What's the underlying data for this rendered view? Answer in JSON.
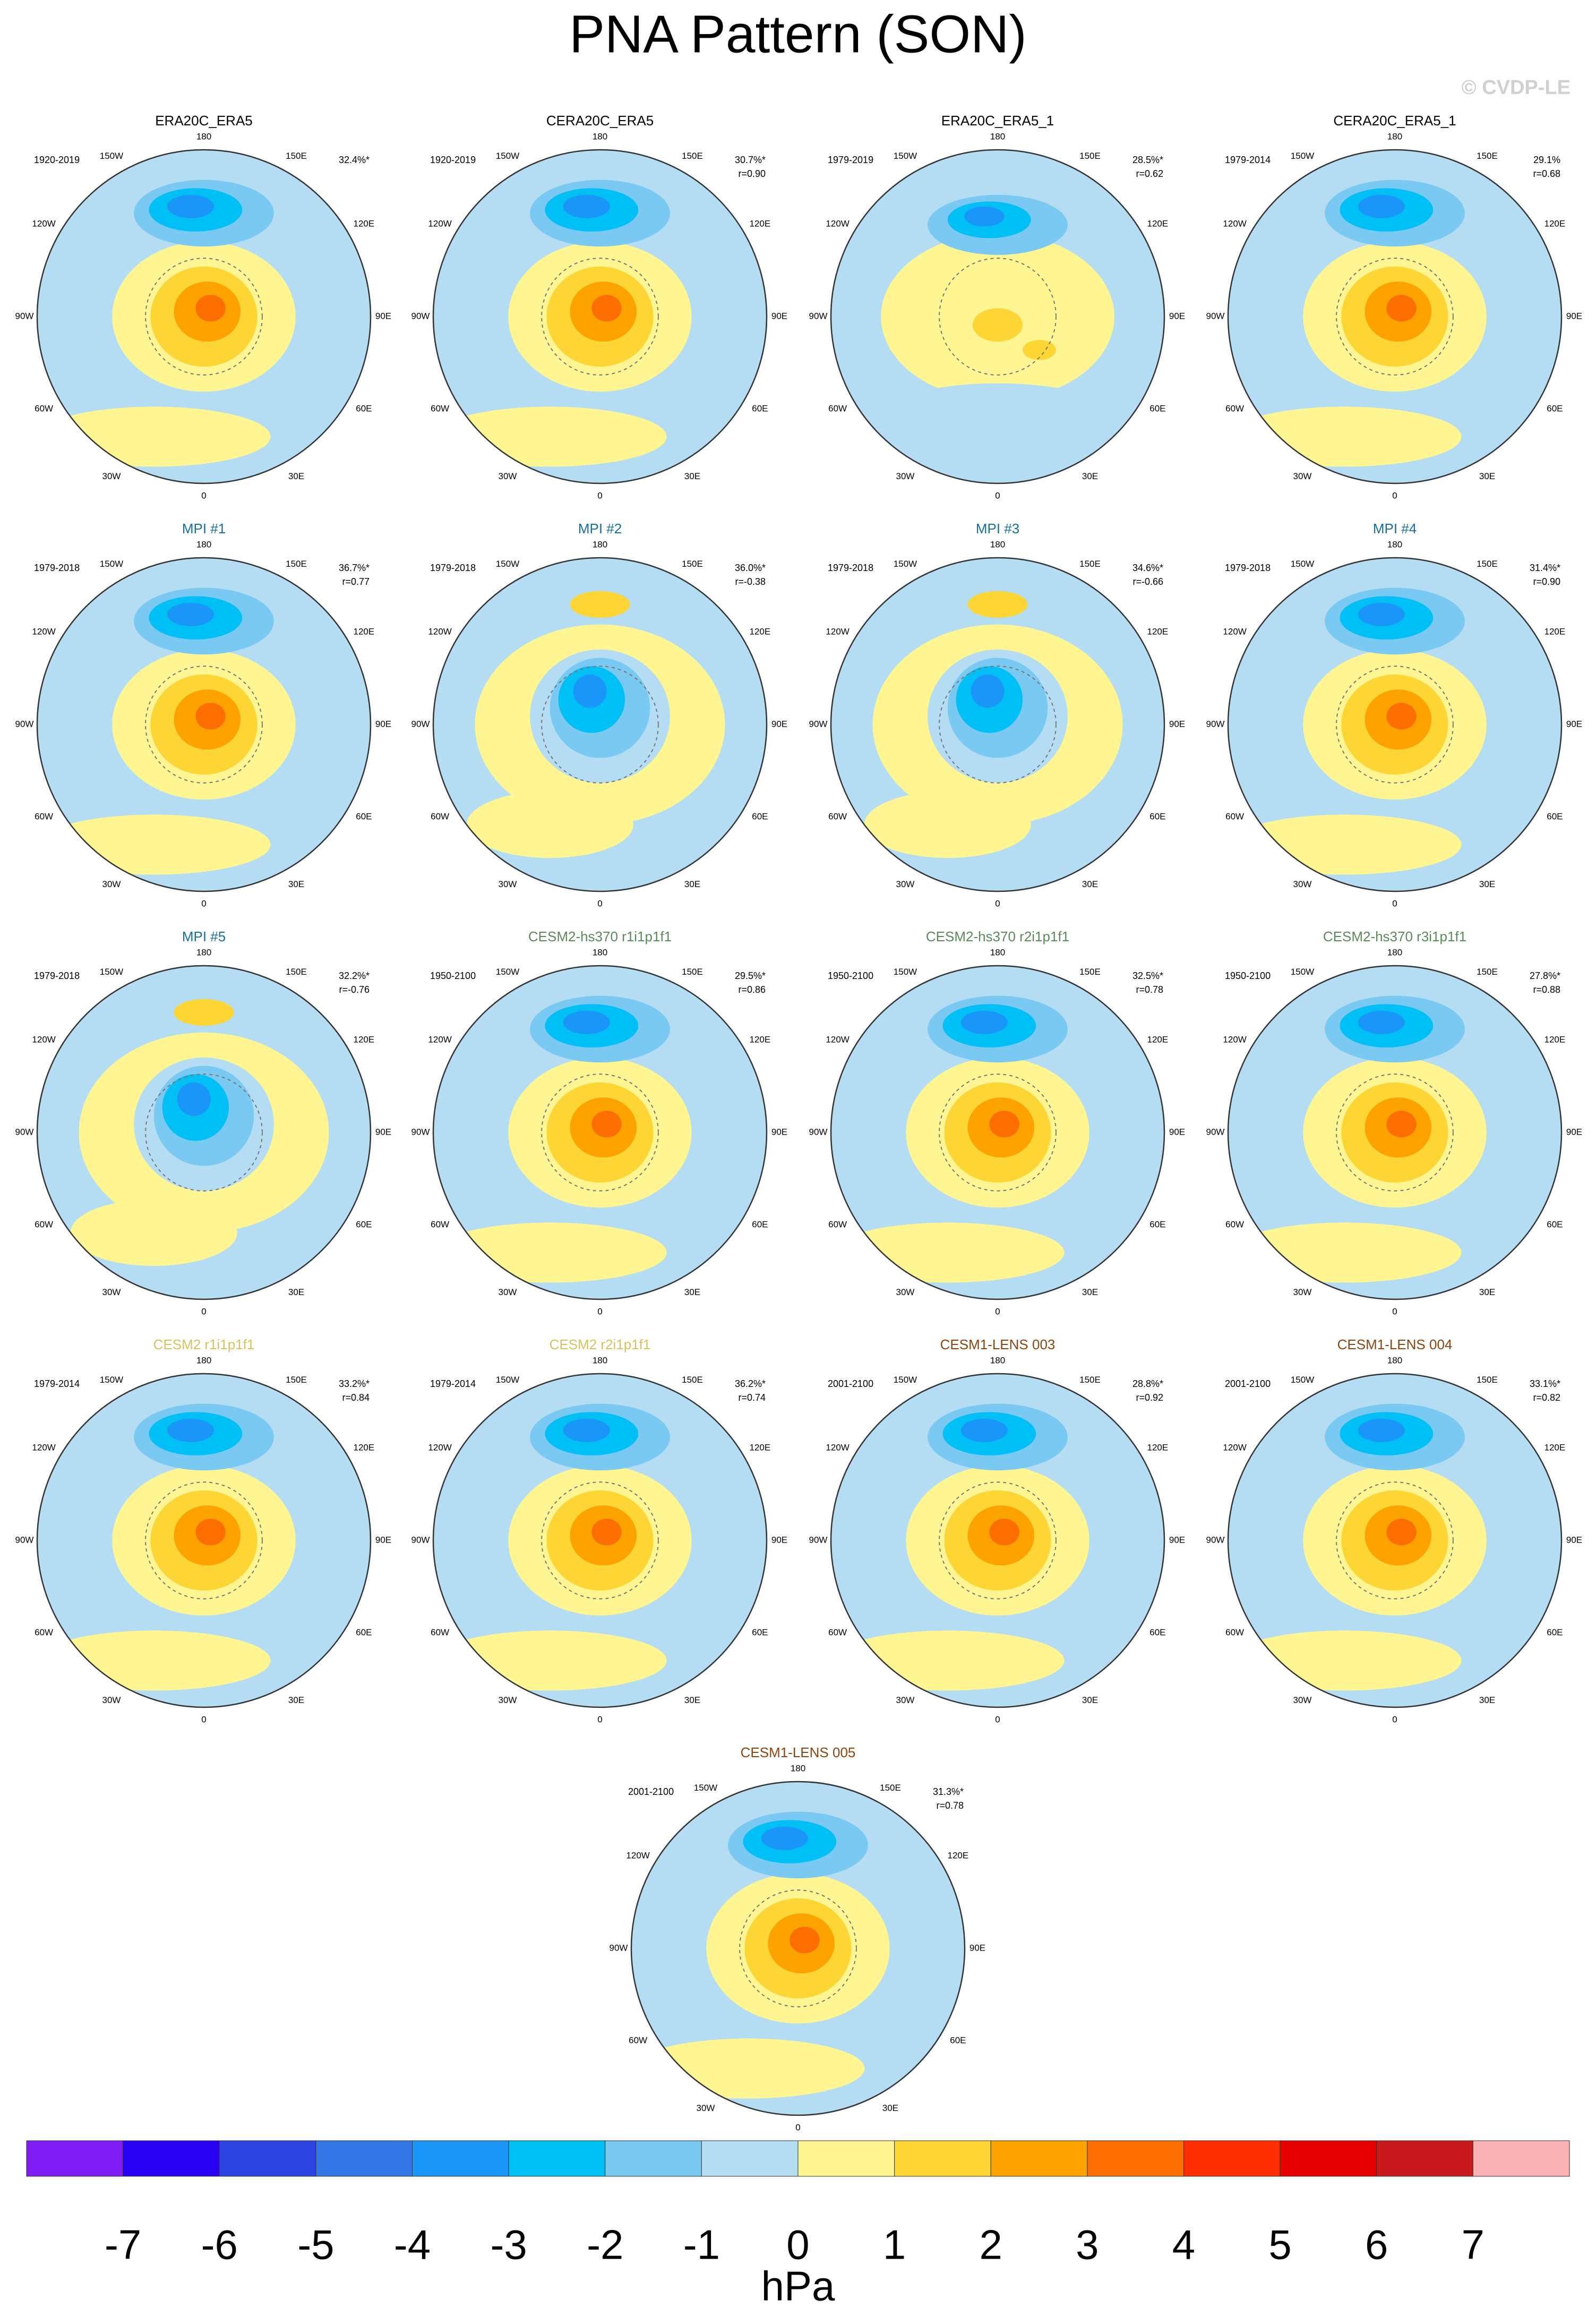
{
  "title": "PNA Pattern (SON)",
  "watermark": "© CVDP-LE",
  "longitude_labels": [
    "180",
    "150E",
    "120E",
    "90E",
    "60E",
    "30E",
    "0",
    "30W",
    "60W",
    "90W",
    "120W",
    "150W"
  ],
  "panels": [
    {
      "title": "ERA20C_ERA5",
      "title_color": "#000000",
      "period": "1920-2019",
      "pct": "32.4%*",
      "pattern": "pna"
    },
    {
      "title": "CERA20C_ERA5",
      "title_color": "#000000",
      "period": "1920-2019",
      "pct": "30.7%*",
      "r": "r=0.90",
      "pattern": "pna"
    },
    {
      "title": "ERA20C_ERA5_1",
      "title_color": "#000000",
      "period": "1979-2019",
      "pct": "28.5%*",
      "r": "r=0.62",
      "pattern": "weak"
    },
    {
      "title": "CERA20C_ERA5_1",
      "title_color": "#000000",
      "period": "1979-2014",
      "pct": "29.1%",
      "r": "r=0.68",
      "pattern": "pna"
    },
    {
      "title": "MPI #1",
      "title_color": "#1a6e9e",
      "period": "1979-2018",
      "pct": "36.7%*",
      "r": "r=0.77",
      "pattern": "pna"
    },
    {
      "title": "MPI #2",
      "title_color": "#1a6e9e",
      "period": "1979-2018",
      "pct": "36.0%*",
      "r": "r=-0.38",
      "pattern": "neg"
    },
    {
      "title": "MPI #3",
      "title_color": "#1a6e9e",
      "period": "1979-2018",
      "pct": "34.6%*",
      "r": "r=-0.66",
      "pattern": "neg"
    },
    {
      "title": "MPI #4",
      "title_color": "#1a6e9e",
      "period": "1979-2018",
      "pct": "31.4%*",
      "r": "r=0.90",
      "pattern": "pna"
    },
    {
      "title": "MPI #5",
      "title_color": "#1a6e9e",
      "period": "1979-2018",
      "pct": "32.2%*",
      "r": "r=-0.76",
      "pattern": "neg"
    },
    {
      "title": "CESM2-hs370 r1i1p1f1",
      "title_color": "#5a8a5a",
      "period": "1950-2100",
      "pct": "29.5%*",
      "r": "r=0.86",
      "pattern": "pna"
    },
    {
      "title": "CESM2-hs370 r2i1p1f1",
      "title_color": "#5a8a5a",
      "period": "1950-2100",
      "pct": "32.5%*",
      "r": "r=0.78",
      "pattern": "pna"
    },
    {
      "title": "CESM2-hs370 r3i1p1f1",
      "title_color": "#5a8a5a",
      "period": "1950-2100",
      "pct": "27.8%*",
      "r": "r=0.88",
      "pattern": "pna"
    },
    {
      "title": "CESM2 r1i1p1f1",
      "title_color": "#d9c060",
      "period": "1979-2014",
      "pct": "33.2%*",
      "r": "r=0.84",
      "pattern": "pna"
    },
    {
      "title": "CESM2 r2i1p1f1",
      "title_color": "#d9c060",
      "period": "1979-2014",
      "pct": "36.2%*",
      "r": "r=0.74",
      "pattern": "pna"
    },
    {
      "title": "CESM1-LENS 003",
      "title_color": "#8b4513",
      "period": "2001-2100",
      "pct": "28.8%*",
      "r": "r=0.92",
      "pattern": "pna"
    },
    {
      "title": "CESM1-LENS 004",
      "title_color": "#8b4513",
      "period": "2001-2100",
      "pct": "33.1%*",
      "r": "r=0.82",
      "pattern": "pna"
    },
    {
      "title": "CESM1-LENS 005",
      "title_color": "#8b4513",
      "period": "2001-2100",
      "pct": "31.3%*",
      "r": "r=0.78",
      "pattern": "pna"
    }
  ],
  "colorbar": {
    "ticks": [
      -7,
      -6,
      -5,
      -4,
      -3,
      -2,
      -1,
      0,
      1,
      2,
      3,
      4,
      5,
      6,
      7
    ],
    "colors": [
      "#7f1df5",
      "#2a00f5",
      "#2c45e4",
      "#3576e8",
      "#1a96f8",
      "#00bff5",
      "#79c9f2",
      "#b4dcf2",
      "#fff593",
      "#fdd535",
      "#fda300",
      "#fd6e00",
      "#fd2d00",
      "#e40000",
      "#c8191d",
      "#fdb3b3"
    ],
    "unit": "hPa"
  }
}
